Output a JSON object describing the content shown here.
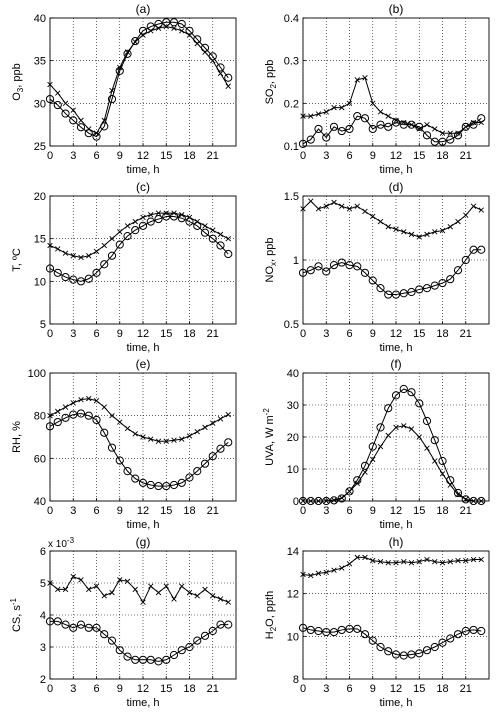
{
  "figure": {
    "background": "#ffffff",
    "line_color": "#000000",
    "grid_style": "dotted"
  },
  "chart_data": [
    {
      "type": "line",
      "title": "(a)",
      "xlabel": "time, h",
      "ylabel": {
        "pre": "O",
        "sub": "3",
        "post": ", ppb"
      },
      "xlim": [
        0,
        24
      ],
      "ylim": [
        25,
        40
      ],
      "xticks": [
        0,
        3,
        6,
        9,
        12,
        15,
        18,
        21
      ],
      "yticks": [
        25,
        30,
        35,
        40
      ],
      "grid": true,
      "series": [
        {
          "marker": "x",
          "x": [
            0,
            1,
            2,
            3,
            4,
            5,
            6,
            7,
            8,
            9,
            10,
            11,
            12,
            13,
            14,
            15,
            16,
            17,
            18,
            19,
            20,
            21,
            22,
            23
          ],
          "values": [
            32.2,
            31.2,
            30.0,
            29.2,
            28.0,
            27.0,
            26.5,
            28.0,
            31.5,
            34.2,
            36.0,
            37.2,
            38.0,
            38.5,
            38.8,
            39.0,
            38.8,
            38.5,
            38.0,
            37.0,
            36.0,
            35.0,
            33.5,
            32.0
          ]
        },
        {
          "marker": "o",
          "x": [
            0,
            1,
            2,
            3,
            4,
            5,
            6,
            7,
            8,
            9,
            10,
            11,
            12,
            13,
            14,
            15,
            16,
            17,
            18,
            19,
            20,
            21,
            22,
            23
          ],
          "values": [
            30.5,
            29.8,
            28.8,
            28.0,
            27.2,
            26.5,
            26.1,
            27.3,
            30.5,
            33.8,
            35.8,
            37.3,
            38.5,
            39.0,
            39.3,
            39.5,
            39.5,
            39.3,
            38.5,
            37.5,
            36.5,
            35.5,
            34.2,
            33.0
          ]
        }
      ]
    },
    {
      "type": "line",
      "title": "(b)",
      "xlabel": "time, h",
      "ylabel": {
        "pre": "SO",
        "sub": "2",
        "post": ", ppb"
      },
      "xlim": [
        0,
        24
      ],
      "ylim": [
        0.1,
        0.4
      ],
      "xticks": [
        0,
        3,
        6,
        9,
        12,
        15,
        18,
        21
      ],
      "yticks": [
        0.1,
        0.2,
        0.3,
        0.4
      ],
      "grid": true,
      "series": [
        {
          "marker": "x",
          "x": [
            0,
            1,
            2,
            3,
            4,
            5,
            6,
            7,
            8,
            9,
            10,
            11,
            12,
            13,
            14,
            15,
            16,
            17,
            18,
            19,
            20,
            21,
            22,
            23
          ],
          "values": [
            0.17,
            0.17,
            0.175,
            0.18,
            0.19,
            0.19,
            0.2,
            0.255,
            0.26,
            0.2,
            0.18,
            0.17,
            0.16,
            0.155,
            0.15,
            0.14,
            0.15,
            0.14,
            0.13,
            0.13,
            0.13,
            0.145,
            0.155,
            0.155
          ]
        },
        {
          "marker": "o",
          "x": [
            0,
            1,
            2,
            3,
            4,
            5,
            6,
            7,
            8,
            9,
            10,
            11,
            12,
            13,
            14,
            15,
            16,
            17,
            18,
            19,
            20,
            21,
            22,
            23
          ],
          "values": [
            0.105,
            0.115,
            0.14,
            0.12,
            0.145,
            0.135,
            0.14,
            0.17,
            0.165,
            0.14,
            0.15,
            0.145,
            0.155,
            0.15,
            0.15,
            0.145,
            0.125,
            0.11,
            0.11,
            0.115,
            0.125,
            0.145,
            0.15,
            0.165
          ]
        }
      ]
    },
    {
      "type": "line",
      "title": "(c)",
      "xlabel": "time, h",
      "ylabel": {
        "pre": "T, ºC",
        "sub": "",
        "post": ""
      },
      "xlim": [
        0,
        24
      ],
      "ylim": [
        5,
        20
      ],
      "xticks": [
        0,
        3,
        6,
        9,
        12,
        15,
        18,
        21
      ],
      "yticks": [
        5,
        10,
        15,
        20
      ],
      "grid": true,
      "series": [
        {
          "marker": "x",
          "x": [
            0,
            1,
            2,
            3,
            4,
            5,
            6,
            7,
            8,
            9,
            10,
            11,
            12,
            13,
            14,
            15,
            16,
            17,
            18,
            19,
            20,
            21,
            22,
            23
          ],
          "values": [
            14.2,
            13.8,
            13.3,
            13.0,
            12.8,
            13.0,
            13.5,
            14.2,
            15.0,
            15.8,
            16.5,
            17.0,
            17.5,
            17.8,
            18.0,
            18.0,
            18.0,
            17.8,
            17.5,
            17.0,
            16.5,
            16.0,
            15.5,
            15.0
          ]
        },
        {
          "marker": "o",
          "x": [
            0,
            1,
            2,
            3,
            4,
            5,
            6,
            7,
            8,
            9,
            10,
            11,
            12,
            13,
            14,
            15,
            16,
            17,
            18,
            19,
            20,
            21,
            22,
            23
          ],
          "values": [
            11.5,
            11.0,
            10.5,
            10.2,
            10.0,
            10.3,
            11.0,
            12.0,
            13.0,
            14.3,
            15.3,
            16.0,
            16.5,
            17.0,
            17.3,
            17.6,
            17.6,
            17.4,
            17.0,
            16.5,
            15.7,
            15.0,
            14.2,
            13.2
          ]
        }
      ]
    },
    {
      "type": "line",
      "title": "(d)",
      "xlabel": "time, h",
      "ylabel": {
        "pre": "NO",
        "sub": "x",
        "post": ", ppb"
      },
      "xlim": [
        0,
        24
      ],
      "ylim": [
        0.5,
        1.5
      ],
      "xticks": [
        0,
        3,
        6,
        9,
        12,
        15,
        18,
        21
      ],
      "yticks": [
        0.5,
        1,
        1.5
      ],
      "grid": true,
      "series": [
        {
          "marker": "x",
          "x": [
            0,
            1,
            2,
            3,
            4,
            5,
            6,
            7,
            8,
            9,
            10,
            11,
            12,
            13,
            14,
            15,
            16,
            17,
            18,
            19,
            20,
            21,
            22,
            23
          ],
          "values": [
            1.4,
            1.46,
            1.4,
            1.42,
            1.45,
            1.42,
            1.4,
            1.42,
            1.38,
            1.34,
            1.3,
            1.26,
            1.24,
            1.22,
            1.2,
            1.18,
            1.2,
            1.22,
            1.23,
            1.26,
            1.3,
            1.35,
            1.42,
            1.39
          ]
        },
        {
          "marker": "o",
          "x": [
            0,
            1,
            2,
            3,
            4,
            5,
            6,
            7,
            8,
            9,
            10,
            11,
            12,
            13,
            14,
            15,
            16,
            17,
            18,
            19,
            20,
            21,
            22,
            23
          ],
          "values": [
            0.9,
            0.92,
            0.95,
            0.91,
            0.96,
            0.98,
            0.96,
            0.95,
            0.9,
            0.84,
            0.78,
            0.73,
            0.73,
            0.74,
            0.75,
            0.77,
            0.78,
            0.8,
            0.82,
            0.85,
            0.92,
            1.0,
            1.08,
            1.08
          ]
        }
      ]
    },
    {
      "type": "line",
      "title": "(e)",
      "xlabel": "time, h",
      "ylabel": {
        "pre": "RH, %",
        "sub": "",
        "post": ""
      },
      "xlim": [
        0,
        24
      ],
      "ylim": [
        40,
        100
      ],
      "xticks": [
        0,
        3,
        6,
        9,
        12,
        15,
        18,
        21
      ],
      "yticks": [
        40,
        60,
        80,
        100
      ],
      "grid": true,
      "series": [
        {
          "marker": "x",
          "x": [
            0,
            1,
            2,
            3,
            4,
            5,
            6,
            7,
            8,
            9,
            10,
            11,
            12,
            13,
            14,
            15,
            16,
            17,
            18,
            19,
            20,
            21,
            22,
            23
          ],
          "values": [
            80,
            82,
            84,
            86,
            87.5,
            88,
            87,
            84,
            80,
            77,
            74,
            71.5,
            70,
            69,
            68,
            68,
            68.5,
            69,
            70.5,
            72.5,
            74.5,
            76.5,
            78.5,
            80.5
          ]
        },
        {
          "marker": "o",
          "x": [
            0,
            1,
            2,
            3,
            4,
            5,
            6,
            7,
            8,
            9,
            10,
            11,
            12,
            13,
            14,
            15,
            16,
            17,
            18,
            19,
            20,
            21,
            22,
            23
          ],
          "values": [
            75,
            77,
            79,
            80.5,
            81,
            80,
            78,
            72,
            65,
            59,
            54,
            50.5,
            48.5,
            47.5,
            47,
            47,
            47.5,
            48.5,
            51,
            54,
            57.5,
            61,
            64.5,
            67.5
          ]
        }
      ]
    },
    {
      "type": "line",
      "title": "(f)",
      "xlabel": "time, h",
      "ylabel": {
        "pre": "UVA, W m",
        "sup": "-2",
        "sub": "",
        "post": ""
      },
      "xlim": [
        0,
        24
      ],
      "ylim": [
        0,
        40
      ],
      "xticks": [
        0,
        3,
        6,
        9,
        12,
        15,
        18,
        21
      ],
      "yticks": [
        0,
        10,
        20,
        30,
        40
      ],
      "grid": true,
      "series": [
        {
          "marker": "x",
          "x": [
            0,
            1,
            2,
            3,
            4,
            5,
            6,
            7,
            8,
            9,
            10,
            11,
            12,
            13,
            14,
            15,
            16,
            17,
            18,
            19,
            20,
            21,
            22,
            23
          ],
          "values": [
            0,
            0,
            0,
            0,
            0.3,
            1,
            3,
            5.5,
            9,
            13,
            17,
            20.5,
            23,
            23.5,
            22.5,
            20,
            16.5,
            12.5,
            8.5,
            5,
            2,
            0.5,
            0,
            0
          ]
        },
        {
          "marker": "o",
          "x": [
            0,
            1,
            2,
            3,
            4,
            5,
            6,
            7,
            8,
            9,
            10,
            11,
            12,
            13,
            14,
            15,
            16,
            17,
            18,
            19,
            20,
            21,
            22,
            23
          ],
          "values": [
            0,
            0,
            0,
            0,
            0.2,
            0.8,
            3,
            6.5,
            11,
            17,
            23,
            29,
            33,
            35,
            34,
            30.5,
            25,
            19,
            12.5,
            6.5,
            2.5,
            0.5,
            0,
            0
          ]
        }
      ]
    },
    {
      "type": "line",
      "title": "(g)",
      "xlabel": "time, h",
      "ylabel": {
        "pre": "CS, s",
        "sup": "-1",
        "sub": "",
        "post": ""
      },
      "scale_note": "x 10",
      "scale_exp": "-3",
      "xlim": [
        0,
        24
      ],
      "ylim": [
        2,
        6
      ],
      "xticks": [
        0,
        3,
        6,
        9,
        12,
        15,
        18,
        21
      ],
      "yticks": [
        2,
        3,
        4,
        5,
        6
      ],
      "grid": true,
      "series": [
        {
          "marker": "x",
          "x": [
            0,
            1,
            2,
            3,
            4,
            5,
            6,
            7,
            8,
            9,
            10,
            11,
            12,
            13,
            14,
            15,
            16,
            17,
            18,
            19,
            20,
            21,
            22,
            23
          ],
          "values": [
            5.0,
            4.8,
            4.8,
            5.2,
            5.1,
            4.8,
            4.9,
            4.6,
            4.7,
            5.1,
            5.05,
            4.8,
            4.4,
            4.9,
            4.7,
            4.9,
            4.5,
            4.9,
            4.7,
            4.6,
            4.8,
            4.6,
            4.5,
            4.4
          ]
        },
        {
          "marker": "o",
          "x": [
            0,
            1,
            2,
            3,
            4,
            5,
            6,
            7,
            8,
            9,
            10,
            11,
            12,
            13,
            14,
            15,
            16,
            17,
            18,
            19,
            20,
            21,
            22,
            23
          ],
          "values": [
            3.8,
            3.8,
            3.7,
            3.6,
            3.7,
            3.6,
            3.6,
            3.4,
            3.2,
            2.9,
            2.7,
            2.6,
            2.6,
            2.6,
            2.55,
            2.6,
            2.75,
            2.9,
            3.0,
            3.2,
            3.35,
            3.5,
            3.7,
            3.7
          ]
        }
      ]
    },
    {
      "type": "line",
      "title": "(h)",
      "xlabel": "time, h",
      "ylabel": {
        "pre": "H",
        "sub": "2",
        "post": "O, ppth"
      },
      "xlim": [
        0,
        24
      ],
      "ylim": [
        8,
        14
      ],
      "xticks": [
        0,
        3,
        6,
        9,
        12,
        15,
        18,
        21
      ],
      "yticks": [
        8,
        10,
        12,
        14
      ],
      "grid": true,
      "series": [
        {
          "marker": "x",
          "x": [
            0,
            1,
            2,
            3,
            4,
            5,
            6,
            7,
            8,
            9,
            10,
            11,
            12,
            13,
            14,
            15,
            16,
            17,
            18,
            19,
            20,
            21,
            22,
            23
          ],
          "values": [
            12.9,
            12.85,
            12.95,
            13.0,
            13.1,
            13.2,
            13.4,
            13.7,
            13.7,
            13.55,
            13.5,
            13.45,
            13.45,
            13.5,
            13.45,
            13.5,
            13.6,
            13.5,
            13.45,
            13.5,
            13.55,
            13.55,
            13.6,
            13.6
          ]
        },
        {
          "marker": "o",
          "x": [
            0,
            1,
            2,
            3,
            4,
            5,
            6,
            7,
            8,
            9,
            10,
            11,
            12,
            13,
            14,
            15,
            16,
            17,
            18,
            19,
            20,
            21,
            22,
            23
          ],
          "values": [
            10.4,
            10.3,
            10.25,
            10.2,
            10.2,
            10.3,
            10.35,
            10.35,
            10.1,
            9.8,
            9.5,
            9.3,
            9.15,
            9.1,
            9.15,
            9.2,
            9.35,
            9.5,
            9.7,
            9.9,
            10.1,
            10.25,
            10.3,
            10.25
          ]
        }
      ]
    }
  ]
}
